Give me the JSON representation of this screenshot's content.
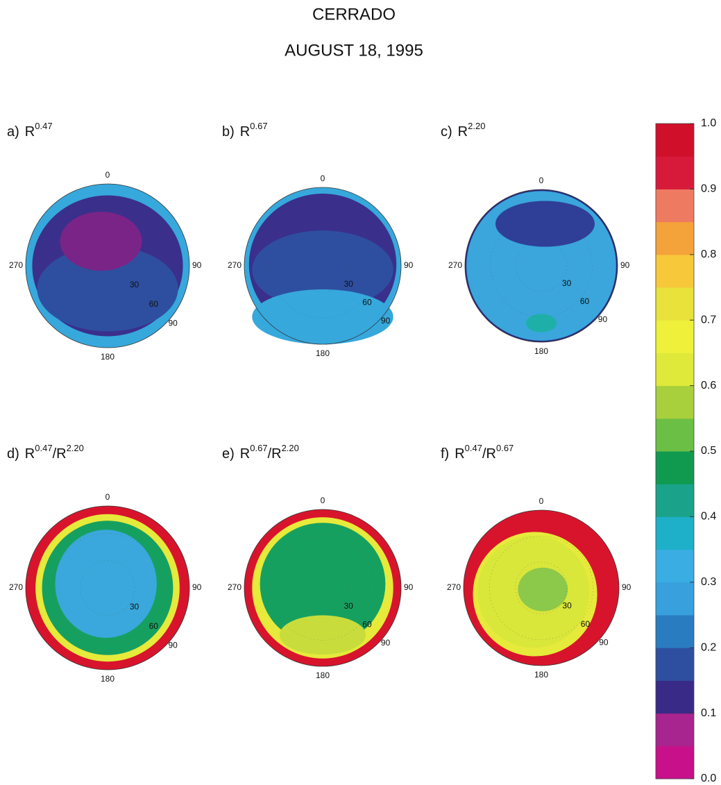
{
  "chart_data": {
    "type": "polar-map",
    "title": "CERRADO",
    "subtitle": "AUGUST 18, 1995",
    "axis_labels": {
      "azimuth": [
        "0",
        "90",
        "180",
        "270"
      ],
      "zenith": [
        "30",
        "60",
        "90"
      ]
    },
    "panels": [
      {
        "label": [
          {
            "text": "a)"
          },
          {
            "text": "R"
          },
          {
            "sup": "0.47"
          }
        ],
        "colors": [
          "#36a8dc",
          "#3b2f8c",
          "#2e4f9f",
          "#7a2488"
        ]
      },
      {
        "label": [
          {
            "text": "b)"
          },
          {
            "text": "R"
          },
          {
            "sup": "0.67"
          }
        ],
        "colors": [
          "#36a8dc",
          "#3b2f8c",
          "#2e4f9f",
          "#36a8dc"
        ]
      },
      {
        "label": [
          {
            "text": "c)"
          },
          {
            "text": "R"
          },
          {
            "sup": "2.20"
          }
        ],
        "colors": [
          "#2b2f7f",
          "#3aa6dc",
          "#2f3f97",
          "#1eb0a8"
        ]
      },
      {
        "label": [
          {
            "text": "d)"
          },
          {
            "text": "R"
          },
          {
            "sup": "0.47"
          },
          {
            "text": "/R"
          },
          {
            "sup": "2.20"
          }
        ],
        "colors": [
          "#d8142c",
          "#e6ea3a",
          "#16a060",
          "#3aa8dc"
        ]
      },
      {
        "label": [
          {
            "text": "e)"
          },
          {
            "text": "R"
          },
          {
            "sup": "0.67"
          },
          {
            "text": "/R"
          },
          {
            "sup": "2.20"
          }
        ],
        "colors": [
          "#d8142c",
          "#e6ea3a",
          "#16a060",
          "#c8dd3c"
        ]
      },
      {
        "label": [
          {
            "text": "f)"
          },
          {
            "text": "R"
          },
          {
            "sup": "0.47"
          },
          {
            "text": "/R"
          },
          {
            "sup": "0.67"
          }
        ],
        "colors": [
          "#d8142c",
          "#e6ea3a",
          "#d9e63a",
          "#8cc84a"
        ]
      }
    ],
    "colorbar": {
      "ylim": [
        0,
        1
      ],
      "yticks": [
        {
          "value": 0,
          "label": "0.0"
        },
        0.1,
        0.2,
        0.3,
        0.4,
        0.5,
        0.6,
        0.7,
        0.8,
        0.9,
        {
          "value": 1,
          "label": "1.0"
        }
      ],
      "colors": [
        "#c8108a",
        "#a8248e",
        "#3a2a88",
        "#2e4f9f",
        "#2a7cc0",
        "#38a0dc",
        "#3aaee2",
        "#1eb0c8",
        "#1aa38a",
        "#0f9a50",
        "#6cbf45",
        "#a8cf3c",
        "#dfe93a",
        "#eef03a",
        "#e8e23a",
        "#f6c83a",
        "#f4a23a",
        "#ef7a62",
        "#d81a3a",
        "#d0102a"
      ]
    }
  }
}
